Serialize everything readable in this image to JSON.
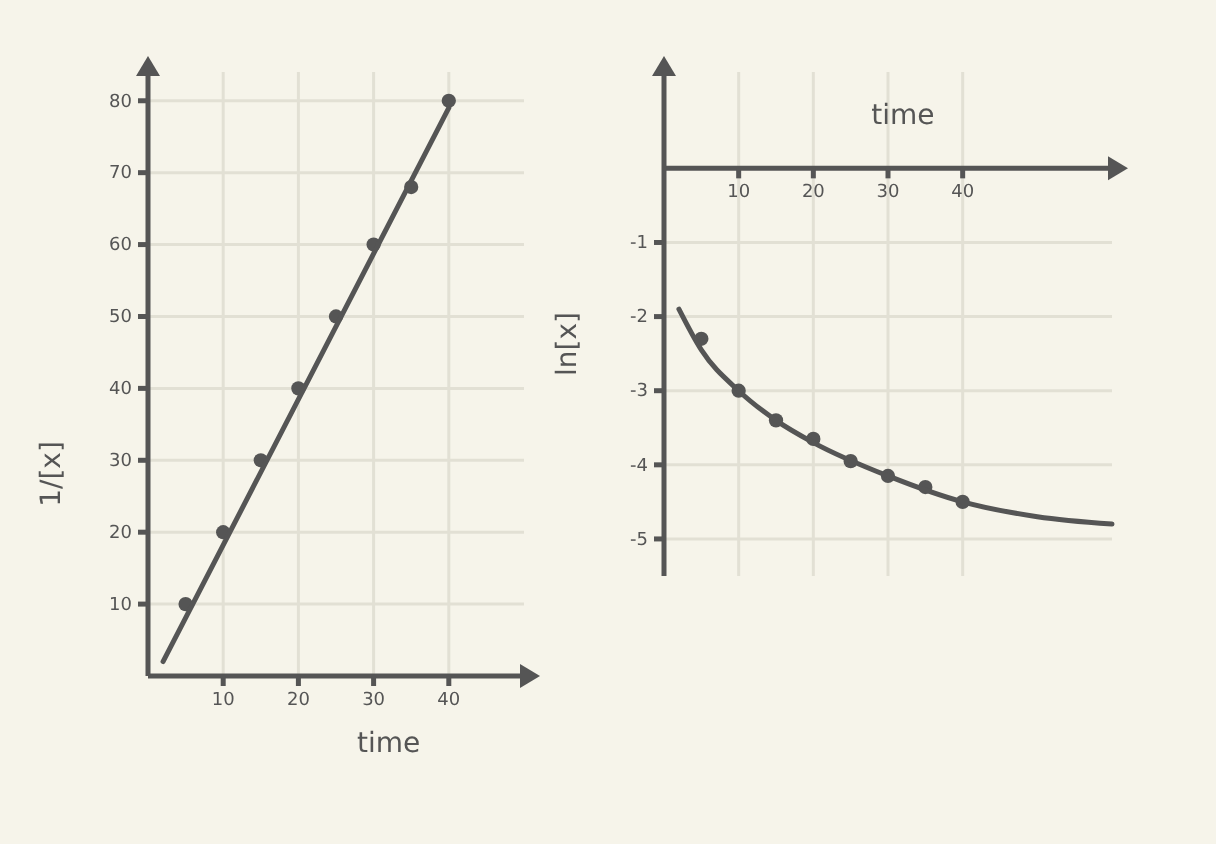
{
  "chart_data": [
    {
      "type": "scatter",
      "xlabel": "time",
      "ylabel": "1/[x]",
      "xlim": [
        0,
        50
      ],
      "ylim": [
        0,
        84
      ],
      "xticks": [
        10,
        20,
        30,
        40
      ],
      "yticks": [
        10,
        20,
        30,
        40,
        50,
        60,
        70,
        80
      ],
      "grid": true,
      "marker": "circle",
      "series": [
        {
          "color": "#555555",
          "x": [
            5,
            10,
            15,
            20,
            25,
            30,
            35,
            40
          ],
          "values": [
            10,
            20,
            30,
            40,
            50,
            60,
            68,
            80
          ]
        },
        {
          "type": "line",
          "color": "#555555",
          "line_style": "solid",
          "marker": "none",
          "x": [
            2,
            40
          ],
          "values": [
            2,
            79
          ]
        }
      ]
    },
    {
      "type": "scatter",
      "xlabel": "time",
      "ylabel": "ln[x]",
      "xlim": [
        0,
        60
      ],
      "ylim": [
        -5.5,
        1.3
      ],
      "xticks": [
        10,
        20,
        30,
        40
      ],
      "yticks": [
        -1,
        -2,
        -3,
        -4,
        -5
      ],
      "grid": true,
      "marker": "circle",
      "series": [
        {
          "color": "#555555",
          "x": [
            5,
            10,
            15,
            20,
            25,
            30,
            35,
            40
          ],
          "values": [
            -2.3,
            -3,
            -3.4,
            -3.65,
            -3.95,
            -4.15,
            -4.3,
            -4.5
          ]
        },
        {
          "type": "line",
          "color": "#555555",
          "line_style": "solid",
          "marker": "none",
          "x": [
            2,
            5,
            10,
            15,
            20,
            30,
            40,
            50,
            60
          ],
          "values": [
            -1.9,
            -2.45,
            -3,
            -3.4,
            -3.7,
            -4.15,
            -4.5,
            -4.7,
            -4.8
          ]
        }
      ]
    }
  ]
}
